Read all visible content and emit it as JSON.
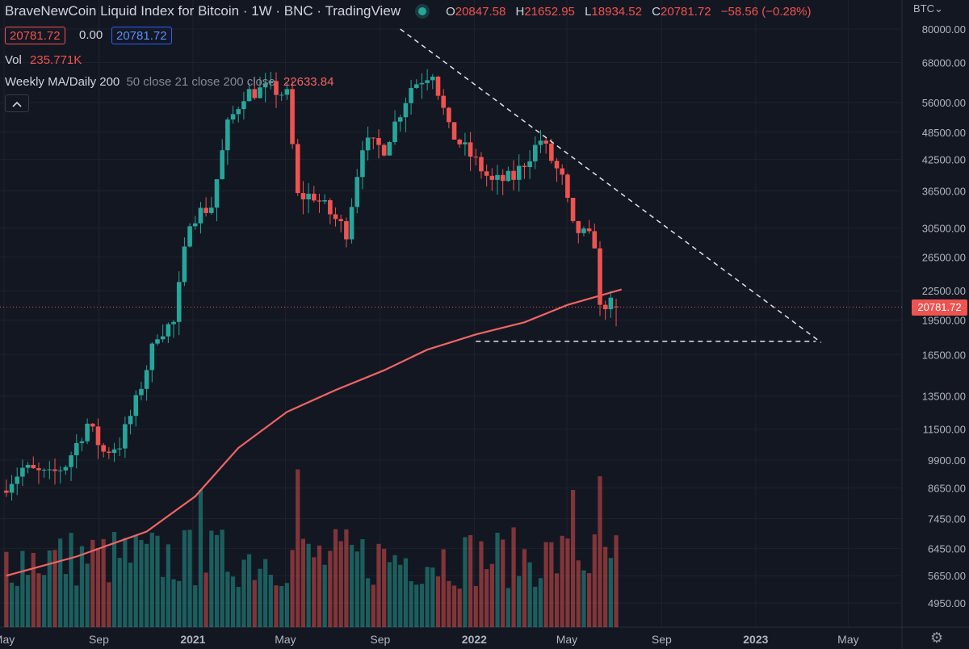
{
  "header": {
    "symbol": "BraveNewCoin Liquid Index for Bitcoin · 1W · BNC · TradingView",
    "ohlc": {
      "o_label": "O",
      "o_value": "20847.58",
      "h_label": "H",
      "h_value": "21652.95",
      "l_label": "L",
      "l_value": "18934.52",
      "c_label": "C",
      "c_value": "20781.72",
      "change": "−58.56 (−0.28%)"
    },
    "bid": "20781.72",
    "spread": "0.00",
    "ask": "20781.72"
  },
  "volume_legend": {
    "label": "Vol",
    "value": "235.771K"
  },
  "ma_legend": {
    "label": "Weekly MA/Daily 200",
    "params": "50 close 21 close 200 close",
    "value": "22633.84"
  },
  "currency": "BTC⌄",
  "last_price": "20781.72",
  "colors": {
    "background": "#131722",
    "up": "#26a69a",
    "down": "#ef5350",
    "ma": "#f06565",
    "grid": "#1e222d"
  },
  "icons": {
    "collapse": "chevron-up-icon",
    "status": "market-status-icon",
    "settings": "gear-icon"
  },
  "chart_data": {
    "type": "candlestick",
    "title": "BraveNewCoin Liquid Index for Bitcoin",
    "interval": "1W",
    "price_axis": {
      "scale": "log",
      "ticks": [
        80000,
        68000,
        56000,
        48500,
        42500,
        36500,
        30500,
        26500,
        22500,
        19500,
        16500,
        13500,
        11500,
        9900,
        8650,
        7450,
        6450,
        5650,
        4950
      ]
    },
    "time_axis": {
      "start": "2020-05-01",
      "end": "2023-06-01",
      "ticks": [
        {
          "label": "May",
          "date": "2020-05-01"
        },
        {
          "label": "Sep",
          "date": "2020-09-01"
        },
        {
          "label": "2021",
          "date": "2021-01-01"
        },
        {
          "label": "May",
          "date": "2021-05-01"
        },
        {
          "label": "Sep",
          "date": "2021-09-01"
        },
        {
          "label": "2022",
          "date": "2022-01-01"
        },
        {
          "label": "May",
          "date": "2022-05-01"
        },
        {
          "label": "Sep",
          "date": "2022-09-01"
        },
        {
          "label": "2023",
          "date": "2023-01-01"
        },
        {
          "label": "May",
          "date": "2023-05-01"
        }
      ]
    },
    "close_anchors": [
      {
        "date": "2020-05-04",
        "close": 8800
      },
      {
        "date": "2020-05-25",
        "close": 9500
      },
      {
        "date": "2020-06-29",
        "close": 9150
      },
      {
        "date": "2020-07-20",
        "close": 9700
      },
      {
        "date": "2020-08-17",
        "close": 11800
      },
      {
        "date": "2020-09-07",
        "close": 10300
      },
      {
        "date": "2020-09-28",
        "close": 10700
      },
      {
        "date": "2020-10-19",
        "close": 13100
      },
      {
        "date": "2020-11-16",
        "close": 18400
      },
      {
        "date": "2020-12-07",
        "close": 19200
      },
      {
        "date": "2020-12-28",
        "close": 32000
      },
      {
        "date": "2021-01-25",
        "close": 34000
      },
      {
        "date": "2021-02-15",
        "close": 50000
      },
      {
        "date": "2021-03-08",
        "close": 58500
      },
      {
        "date": "2021-04-12",
        "close": 60000
      },
      {
        "date": "2021-05-03",
        "close": 58000
      },
      {
        "date": "2021-05-17",
        "close": 35500
      },
      {
        "date": "2021-06-07",
        "close": 35700
      },
      {
        "date": "2021-07-19",
        "close": 30000
      },
      {
        "date": "2021-08-09",
        "close": 46000
      },
      {
        "date": "2021-09-06",
        "close": 45000
      },
      {
        "date": "2021-10-11",
        "close": 60500
      },
      {
        "date": "2021-11-08",
        "close": 65500
      },
      {
        "date": "2021-11-29",
        "close": 49000
      },
      {
        "date": "2022-01-03",
        "close": 42000
      },
      {
        "date": "2022-01-24",
        "close": 38000
      },
      {
        "date": "2022-02-21",
        "close": 39000
      },
      {
        "date": "2022-03-28",
        "close": 46800
      },
      {
        "date": "2022-04-25",
        "close": 38500
      },
      {
        "date": "2022-05-09",
        "close": 30500
      },
      {
        "date": "2022-06-06",
        "close": 28500
      },
      {
        "date": "2022-06-13",
        "close": 20500
      },
      {
        "date": "2022-06-20",
        "close": 21200
      },
      {
        "date": "2022-07-04",
        "close": 20782
      }
    ],
    "last_candle": {
      "date": "2022-07-04",
      "open": 20847.58,
      "high": 21652.95,
      "low": 18934.52,
      "close": 20781.72
    },
    "ma200": [
      {
        "date": "2020-05-04",
        "value": 5650
      },
      {
        "date": "2020-08-03",
        "value": 6200
      },
      {
        "date": "2020-11-02",
        "value": 7000
      },
      {
        "date": "2021-01-04",
        "value": 8300
      },
      {
        "date": "2021-03-01",
        "value": 10500
      },
      {
        "date": "2021-05-03",
        "value": 12500
      },
      {
        "date": "2021-07-05",
        "value": 13900
      },
      {
        "date": "2021-09-06",
        "value": 15300
      },
      {
        "date": "2021-11-01",
        "value": 16900
      },
      {
        "date": "2022-01-03",
        "value": 18200
      },
      {
        "date": "2022-03-07",
        "value": 19300
      },
      {
        "date": "2022-05-02",
        "value": 21000
      },
      {
        "date": "2022-07-11",
        "value": 22634
      }
    ],
    "volume_spikes": [
      {
        "date": "2021-01-11",
        "level": 1.0
      },
      {
        "date": "2021-05-17",
        "level": 1.15
      },
      {
        "date": "2022-05-09",
        "level": 1.0
      },
      {
        "date": "2022-06-13",
        "level": 1.1
      }
    ],
    "drawings": [
      {
        "type": "trend-line",
        "style": "dashed",
        "from": {
          "date": "2021-09-27",
          "price": 80000
        },
        "to": {
          "date": "2023-03-27",
          "price": 17500
        }
      },
      {
        "type": "horizontal-segment",
        "style": "dashed",
        "price": 17600,
        "from_date": "2022-01-03",
        "to_date": "2023-03-20"
      }
    ],
    "last_price_line": 20781.72
  }
}
